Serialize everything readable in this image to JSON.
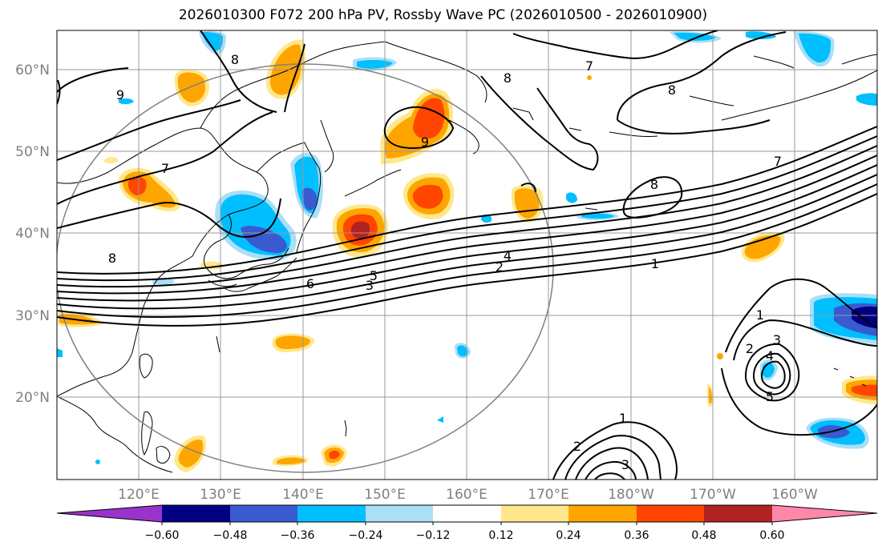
{
  "title": "2026010300 F072 200 hPa PV, Rossby Wave PC (2026010500 - 2026010900)",
  "map": {
    "lat_labels": [
      "60°N",
      "50°N",
      "40°N",
      "30°N",
      "20°N"
    ],
    "lon_labels": [
      "120°E",
      "130°E",
      "140°E",
      "150°E",
      "160°E",
      "170°E",
      "180°W",
      "170°W",
      "160°W"
    ],
    "contour_labels": [
      "9",
      "8",
      "8",
      "7",
      "7",
      "8",
      "7",
      "8",
      "9",
      "8",
      "6",
      "5",
      "4",
      "3",
      "2",
      "1",
      "1",
      "2",
      "3",
      "4",
      "5",
      "1",
      "2",
      "3"
    ]
  },
  "colorbar": {
    "ticks": [
      "−0.60",
      "−0.48",
      "−0.36",
      "−0.24",
      "−0.12",
      "0.12",
      "0.24",
      "0.36",
      "0.48",
      "0.60"
    ],
    "colors": [
      "#9933cc",
      "#000080",
      "#3a5ad0",
      "#00bfff",
      "#aadff7",
      "#ffffff",
      "#ffe88c",
      "#ffa500",
      "#ff4500",
      "#b22222",
      "#ff88aa"
    ]
  }
}
